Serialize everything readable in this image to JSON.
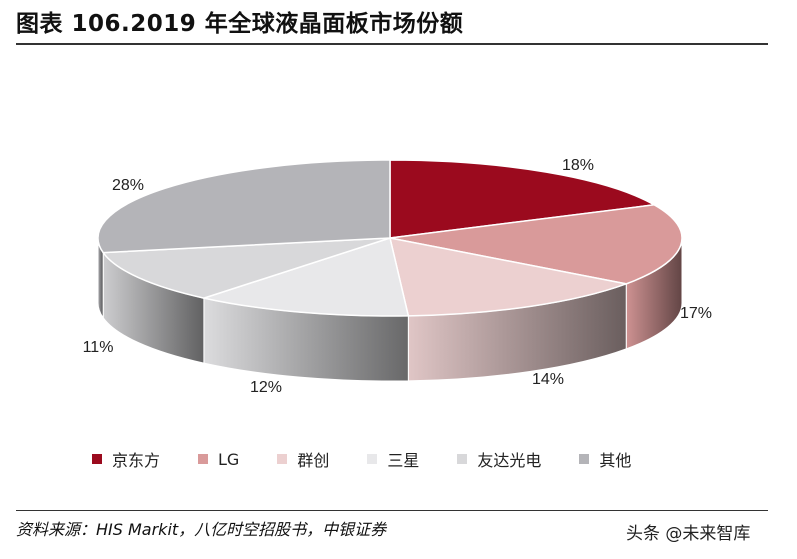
{
  "title": "图表 106.2019 年全球液晶面板市场份额",
  "chart_data": {
    "type": "pie",
    "title": "图表 106.2019 年全球液晶面板市场份额",
    "slices": [
      {
        "label": "京东方",
        "value": 18,
        "display": "18%",
        "color": "#9b0a1e"
      },
      {
        "label": "LG",
        "value": 17,
        "display": "17%",
        "color": "#d99a9a"
      },
      {
        "label": "群创",
        "value": 14,
        "display": "14%",
        "color": "#ecd0d0"
      },
      {
        "label": "三星",
        "value": 12,
        "display": "12%",
        "color": "#e8e8ea"
      },
      {
        "label": "友达光电",
        "value": 11,
        "display": "11%",
        "color": "#d8d8da"
      },
      {
        "label": "其他",
        "value": 28,
        "display": "28%",
        "color": "#b4b4b8"
      }
    ],
    "style": "3d",
    "legend_position": "bottom"
  },
  "source": "资料来源：HIS Markit，八亿时空招股书，中银证券",
  "watermark": "头条 @未来智库"
}
